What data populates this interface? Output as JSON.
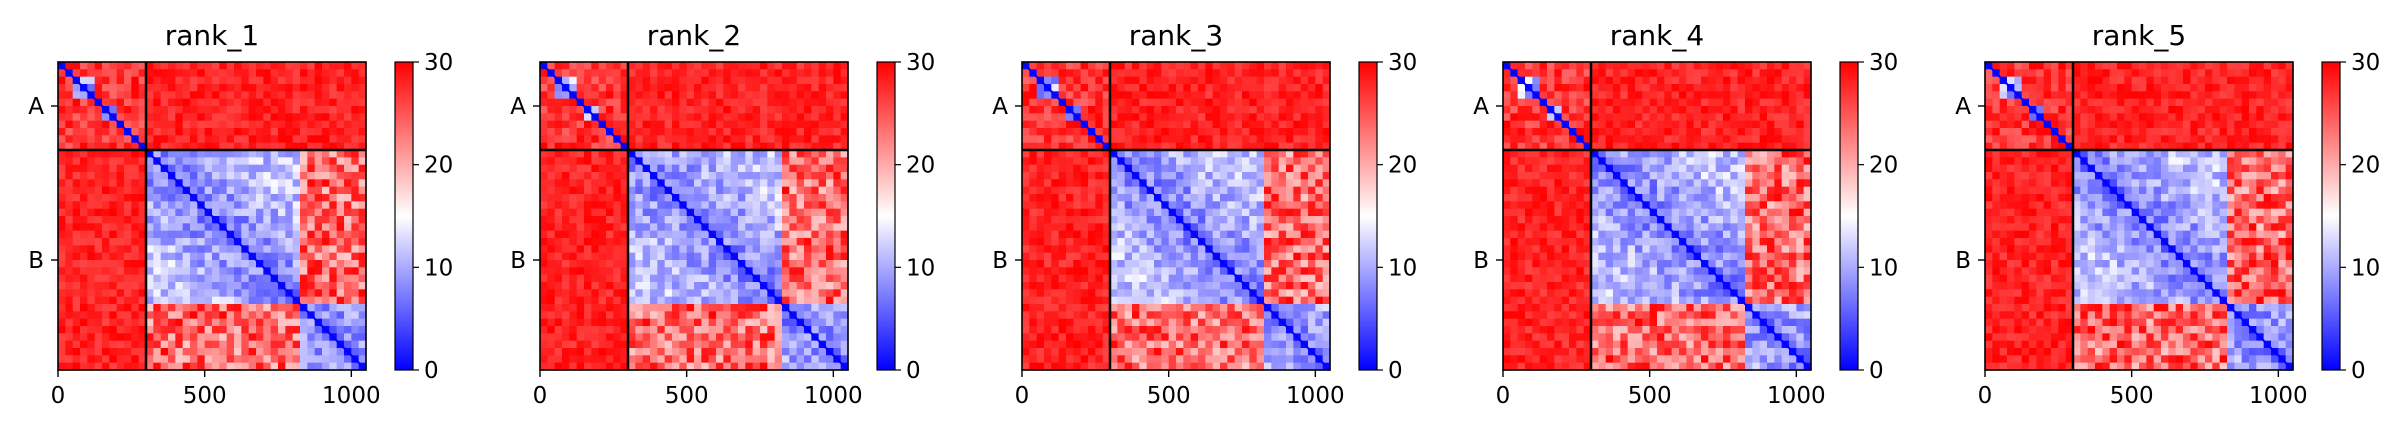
{
  "chart_data": [
    {
      "type": "heatmap",
      "title": "rank_1",
      "chains": [
        {
          "label": "A",
          "start": 0,
          "end": 300
        },
        {
          "label": "B",
          "start": 300,
          "end": 1050
        }
      ],
      "xlim": [
        0,
        1050
      ],
      "xticks": [
        0,
        500,
        1000
      ],
      "colorbar": {
        "min": 0,
        "max": 30,
        "ticks": [
          0,
          10,
          20,
          30
        ],
        "colors": [
          "#0000ff",
          "#ffffff",
          "#ff0000"
        ]
      },
      "domains": [
        [
          0,
          300
        ],
        [
          300,
          830
        ],
        [
          830,
          1050
        ]
      ],
      "diagonal_value": 0
    },
    {
      "type": "heatmap",
      "title": "rank_2",
      "chains": [
        {
          "label": "A",
          "start": 0,
          "end": 300
        },
        {
          "label": "B",
          "start": 300,
          "end": 1050
        }
      ],
      "xlim": [
        0,
        1050
      ],
      "xticks": [
        0,
        500,
        1000
      ],
      "colorbar": {
        "min": 0,
        "max": 30,
        "ticks": [
          0,
          10,
          20,
          30
        ],
        "colors": [
          "#0000ff",
          "#ffffff",
          "#ff0000"
        ]
      },
      "domains": [
        [
          0,
          300
        ],
        [
          300,
          830
        ],
        [
          830,
          1050
        ]
      ],
      "diagonal_value": 0
    },
    {
      "type": "heatmap",
      "title": "rank_3",
      "chains": [
        {
          "label": "A",
          "start": 0,
          "end": 300
        },
        {
          "label": "B",
          "start": 300,
          "end": 1050
        }
      ],
      "xlim": [
        0,
        1050
      ],
      "xticks": [
        0,
        500,
        1000
      ],
      "colorbar": {
        "min": 0,
        "max": 30,
        "ticks": [
          0,
          10,
          20,
          30
        ],
        "colors": [
          "#0000ff",
          "#ffffff",
          "#ff0000"
        ]
      },
      "domains": [
        [
          0,
          300
        ],
        [
          300,
          830
        ],
        [
          830,
          1050
        ]
      ],
      "diagonal_value": 0
    },
    {
      "type": "heatmap",
      "title": "rank_4",
      "chains": [
        {
          "label": "A",
          "start": 0,
          "end": 300
        },
        {
          "label": "B",
          "start": 300,
          "end": 1050
        }
      ],
      "xlim": [
        0,
        1050
      ],
      "xticks": [
        0,
        500,
        1000
      ],
      "colorbar": {
        "min": 0,
        "max": 30,
        "ticks": [
          0,
          10,
          20,
          30
        ],
        "colors": [
          "#0000ff",
          "#ffffff",
          "#ff0000"
        ]
      },
      "domains": [
        [
          0,
          300
        ],
        [
          300,
          830
        ],
        [
          830,
          1050
        ]
      ],
      "diagonal_value": 0
    },
    {
      "type": "heatmap",
      "title": "rank_5",
      "chains": [
        {
          "label": "A",
          "start": 0,
          "end": 300
        },
        {
          "label": "B",
          "start": 300,
          "end": 1050
        }
      ],
      "xlim": [
        0,
        1050
      ],
      "xticks": [
        0,
        500,
        1000
      ],
      "colorbar": {
        "min": 0,
        "max": 30,
        "ticks": [
          0,
          10,
          20,
          30
        ],
        "colors": [
          "#0000ff",
          "#ffffff",
          "#ff0000"
        ]
      },
      "domains": [
        [
          0,
          300
        ],
        [
          300,
          830
        ],
        [
          830,
          1050
        ]
      ],
      "diagonal_value": 0
    }
  ]
}
